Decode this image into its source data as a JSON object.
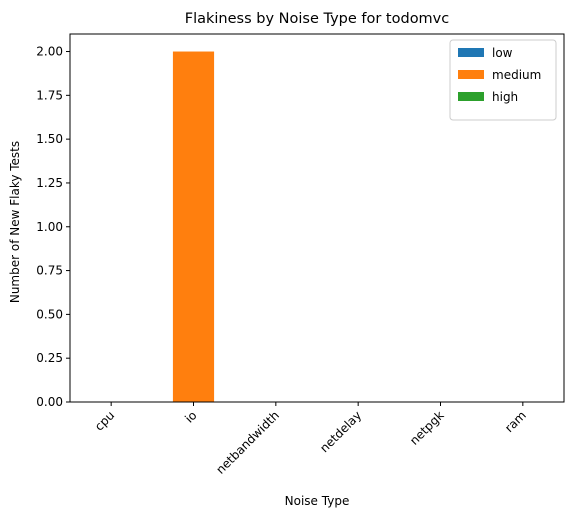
{
  "chart_data": {
    "type": "bar",
    "title": "Flakiness by Noise Type for todomvc",
    "xlabel": "Noise Type",
    "ylabel": "Number of New Flaky Tests",
    "categories": [
      "cpu",
      "io",
      "netbandwidth",
      "netdelay",
      "netpgk",
      "ram"
    ],
    "series": [
      {
        "name": "low",
        "color": "#1f77b4",
        "values": [
          0,
          0,
          0,
          0,
          0,
          0
        ]
      },
      {
        "name": "medium",
        "color": "#ff7f0e",
        "values": [
          0,
          2,
          0,
          0,
          0,
          0
        ]
      },
      {
        "name": "high",
        "color": "#2ca02c",
        "values": [
          0,
          0,
          0,
          0,
          0,
          0
        ]
      }
    ],
    "ylim": [
      0,
      2.1
    ],
    "yticks": [
      "0.00",
      "0.25",
      "0.50",
      "0.75",
      "1.00",
      "1.25",
      "1.50",
      "1.75",
      "2.00"
    ],
    "grid": false,
    "legend_position": "top-right"
  }
}
